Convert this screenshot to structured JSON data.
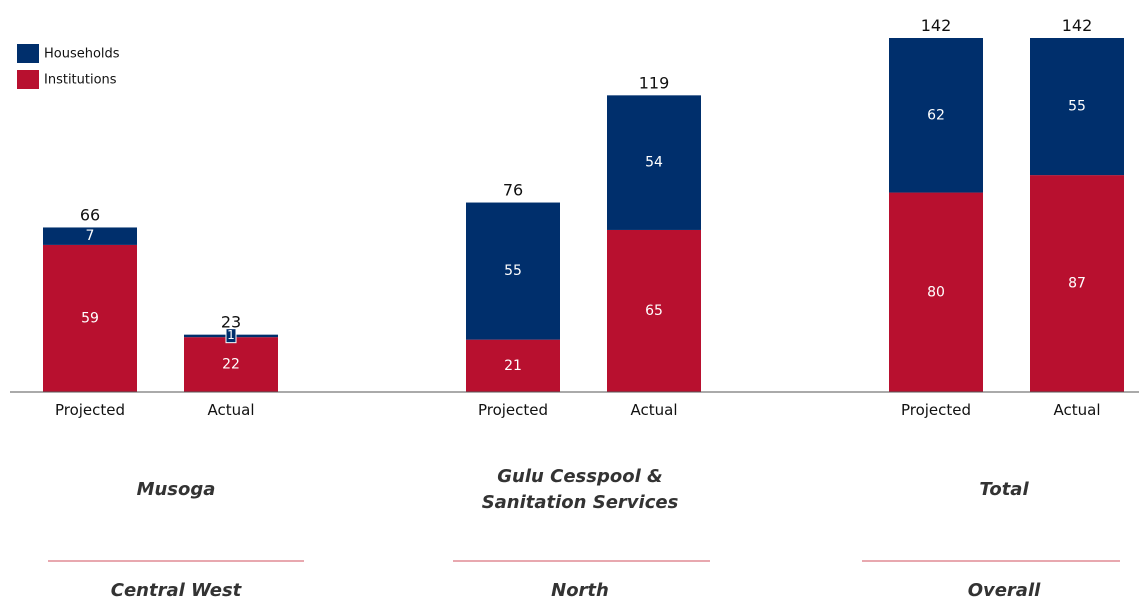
{
  "chart_data": {
    "type": "bar",
    "stacked": true,
    "legend_position": "top-left",
    "grid": false,
    "ylim": [
      0,
      142
    ],
    "colors": {
      "Institutions": "#b8102f",
      "Households": "#002f6c",
      "separator": "#d9737f"
    },
    "legend": [
      "Households",
      "Institutions"
    ],
    "groups": [
      {
        "name": "Musoga",
        "region": "Central West",
        "bars": [
          {
            "category": "Projected",
            "total": 66,
            "Institutions": 59,
            "Households": 7
          },
          {
            "category": "Actual",
            "total": 23,
            "Institutions": 22,
            "Households": 1
          }
        ]
      },
      {
        "name": "Gulu Cesspool & Sanitation Services",
        "name_lines": [
          "Gulu Cesspool &",
          "Sanitation Services"
        ],
        "region": "North",
        "bars": [
          {
            "category": "Projected",
            "total": 76,
            "Institutions": 21,
            "Households": 55
          },
          {
            "category": "Actual",
            "total": 119,
            "Institutions": 65,
            "Households": 54
          }
        ]
      },
      {
        "name": "Total",
        "region": "Overall",
        "bars": [
          {
            "category": "Projected",
            "total": 142,
            "Institutions": 80,
            "Households": 62
          },
          {
            "category": "Actual",
            "total": 142,
            "Institutions": 87,
            "Households": 55
          }
        ]
      }
    ]
  }
}
